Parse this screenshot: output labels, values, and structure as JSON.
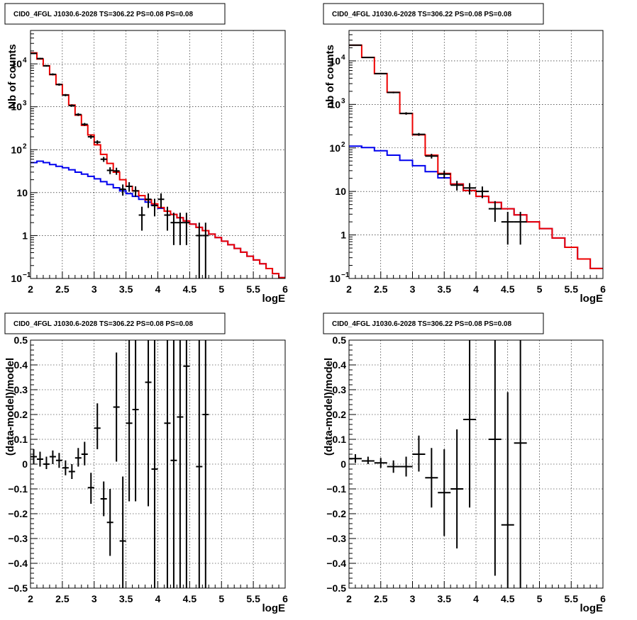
{
  "chart_data": [
    {
      "id": "counts-left",
      "type": "histogram",
      "title": "CID0_4FGL J1030.6-2028 TS=306.22 PS=0.08 PS=0.08",
      "xlabel": "logE",
      "ylabel": "Nb of counts",
      "xlim": [
        2,
        6
      ],
      "ylim": [
        0.1,
        60000
      ],
      "yscale": "log",
      "grid": true,
      "xticks": [
        "2",
        "2.5",
        "3",
        "3.5",
        "4",
        "4.5",
        "5",
        "5.5",
        "6"
      ],
      "yticks": [
        {
          "v": 0.1,
          "base": "10",
          "exp": "−1"
        },
        {
          "v": 1,
          "label": "1"
        },
        {
          "v": 10,
          "label": "10"
        },
        {
          "v": 100,
          "base": "10",
          "exp": "2"
        },
        {
          "v": 1000,
          "base": "10",
          "exp": "3"
        },
        {
          "v": 10000,
          "base": "10",
          "exp": "4"
        }
      ],
      "hist_series": [
        {
          "color": "#0000ee",
          "edges_start": 2,
          "bin_width": 0.1,
          "values": [
            50,
            54,
            50,
            45,
            41,
            38,
            34,
            30,
            27,
            24,
            21,
            18,
            15.5,
            13,
            11,
            9.5,
            8.2,
            7,
            6,
            5.1,
            4.3,
            3.7,
            3.1,
            2.6,
            2.2,
            1.85,
            1.55,
            1.3,
            1.08,
            0.9,
            0.74,
            0.61,
            0.5,
            0.41,
            0.33,
            0.27,
            0.22,
            0.17,
            0.13,
            0.105
          ]
        },
        {
          "color": "#ee0000",
          "edges_start": 2,
          "bin_width": 0.1,
          "values": [
            18000,
            13000,
            9000,
            5600,
            3300,
            1900,
            1100,
            640,
            370,
            220,
            130,
            78,
            48,
            30,
            20,
            14,
            11,
            8.5,
            6.8,
            5.5,
            4.5,
            3.7,
            3.1,
            2.6,
            2.2,
            1.85,
            1.55,
            1.3,
            1.08,
            0.9,
            0.74,
            0.61,
            0.5,
            0.41,
            0.33,
            0.27,
            0.22,
            0.17,
            0.13,
            0.105
          ]
        }
      ],
      "points": [
        {
          "x": 2.05,
          "y": 17500,
          "lo": 16900,
          "hi": 18100
        },
        {
          "x": 2.15,
          "y": 13300,
          "lo": 12800,
          "hi": 13800
        },
        {
          "x": 2.25,
          "y": 9000,
          "lo": 8600,
          "hi": 9400
        },
        {
          "x": 2.35,
          "y": 5700,
          "lo": 5400,
          "hi": 6000
        },
        {
          "x": 2.45,
          "y": 3300,
          "lo": 3100,
          "hi": 3500
        },
        {
          "x": 2.55,
          "y": 1870,
          "lo": 1760,
          "hi": 1980
        },
        {
          "x": 2.65,
          "y": 1070,
          "lo": 1000,
          "hi": 1140
        },
        {
          "x": 2.75,
          "y": 660,
          "lo": 610,
          "hi": 710
        },
        {
          "x": 2.85,
          "y": 390,
          "lo": 360,
          "hi": 420
        },
        {
          "x": 2.95,
          "y": 200,
          "lo": 180,
          "hi": 220
        },
        {
          "x": 3.05,
          "y": 150,
          "lo": 135,
          "hi": 165
        },
        {
          "x": 3.15,
          "y": 60,
          "lo": 52,
          "hi": 68
        },
        {
          "x": 3.25,
          "y": 33,
          "lo": 27,
          "hi": 39
        },
        {
          "x": 3.35,
          "y": 32,
          "lo": 26,
          "hi": 38
        },
        {
          "x": 3.45,
          "y": 12,
          "lo": 8.5,
          "hi": 15.5
        },
        {
          "x": 3.55,
          "y": 14,
          "lo": 10.5,
          "hi": 17.5
        },
        {
          "x": 3.65,
          "y": 11,
          "lo": 8,
          "hi": 14
        },
        {
          "x": 3.75,
          "y": 3,
          "lo": 1.3,
          "hi": 4.7
        },
        {
          "x": 3.85,
          "y": 7,
          "lo": 4.4,
          "hi": 9.6
        },
        {
          "x": 3.95,
          "y": 5,
          "lo": 2.8,
          "hi": 7.2
        },
        {
          "x": 4.05,
          "y": 7,
          "lo": 4.4,
          "hi": 9.6
        },
        {
          "x": 4.15,
          "y": 3,
          "lo": 1.3,
          "hi": 4.7
        },
        {
          "x": 4.25,
          "y": 2,
          "lo": 0.6,
          "hi": 3.4
        },
        {
          "x": 4.35,
          "y": 2,
          "lo": 0.6,
          "hi": 3.4
        },
        {
          "x": 4.45,
          "y": 2,
          "lo": 0.6,
          "hi": 3.4
        },
        {
          "x": 4.65,
          "y": 1,
          "lo": 0.1,
          "hi": 2
        },
        {
          "x": 4.75,
          "y": 1,
          "lo": 0.1,
          "hi": 2
        }
      ]
    },
    {
      "id": "counts-right",
      "type": "histogram",
      "title": "CID0_4FGL J1030.6-2028 TS=306.22 PS=0.08 PS=0.08",
      "xlabel": "logE",
      "ylabel": "nb of counts",
      "xlim": [
        2,
        6
      ],
      "ylim": [
        0.1,
        50000
      ],
      "yscale": "log",
      "grid": true,
      "xticks": [
        "2",
        "2.5",
        "3",
        "3.5",
        "4",
        "4.5",
        "5",
        "5.5",
        "6"
      ],
      "yticks": [
        {
          "v": 0.1,
          "base": "10",
          "exp": "−1"
        },
        {
          "v": 1,
          "label": "1"
        },
        {
          "v": 10,
          "label": "10"
        },
        {
          "v": 100,
          "base": "10",
          "exp": "2"
        },
        {
          "v": 1000,
          "base": "10",
          "exp": "3"
        },
        {
          "v": 10000,
          "base": "10",
          "exp": "4"
        }
      ],
      "hist_series": [
        {
          "color": "#0000ee",
          "edges_start": 2,
          "bin_width": 0.2,
          "values": [
            110,
            102,
            86,
            68,
            52,
            39,
            28.5,
            20.5,
            14.8,
            10.5,
            7.7,
            5.6,
            4,
            2.9,
            2,
            1.4,
            0.85,
            0.52,
            0.28,
            0.17
          ]
        },
        {
          "color": "#ee0000",
          "edges_start": 2,
          "bin_width": 0.2,
          "values": [
            23000,
            12000,
            5100,
            1900,
            620,
            200,
            68,
            26,
            14.8,
            10.5,
            7.7,
            5.6,
            4,
            2.9,
            2,
            1.4,
            0.85,
            0.52,
            0.28,
            0.17
          ]
        }
      ],
      "points": [
        {
          "x": 2.1,
          "y": 23000,
          "lo": 22500,
          "hi": 23500
        },
        {
          "x": 2.3,
          "y": 12000,
          "lo": 11700,
          "hi": 12300
        },
        {
          "x": 2.5,
          "y": 5100,
          "lo": 4900,
          "hi": 5300
        },
        {
          "x": 2.7,
          "y": 1880,
          "lo": 1800,
          "hi": 1960
        },
        {
          "x": 2.9,
          "y": 620,
          "lo": 580,
          "hi": 660
        },
        {
          "x": 3.1,
          "y": 205,
          "lo": 190,
          "hi": 220
        },
        {
          "x": 3.3,
          "y": 65,
          "lo": 57,
          "hi": 73
        },
        {
          "x": 3.5,
          "y": 25,
          "lo": 20,
          "hi": 30
        },
        {
          "x": 3.7,
          "y": 14,
          "lo": 10.5,
          "hi": 17.5
        },
        {
          "x": 3.9,
          "y": 12,
          "lo": 8.5,
          "hi": 15.5
        },
        {
          "x": 4.1,
          "y": 10,
          "lo": 7,
          "hi": 13
        },
        {
          "x": 4.3,
          "y": 4,
          "lo": 2,
          "hi": 6
        },
        {
          "x": 4.5,
          "y": 2,
          "lo": 0.6,
          "hi": 3.4
        },
        {
          "x": 4.7,
          "y": 2,
          "lo": 0.6,
          "hi": 3.4
        }
      ]
    },
    {
      "id": "resid-left",
      "type": "scatter",
      "title": "CID0_4FGL J1030.6-2028 TS=306.22 PS=0.08 PS=0.08",
      "xlabel": "logE",
      "ylabel": "(data-model)/model",
      "xlim": [
        2,
        6
      ],
      "ylim": [
        -0.5,
        0.5
      ],
      "yscale": "linear",
      "grid": true,
      "xticks": [
        "2",
        "2.5",
        "3",
        "3.5",
        "4",
        "4.5",
        "5",
        "5.5",
        "6"
      ],
      "yticks": [
        {
          "v": -0.5,
          "label": "−0.5"
        },
        {
          "v": -0.4,
          "label": "−0.4"
        },
        {
          "v": -0.3,
          "label": "−0.3"
        },
        {
          "v": -0.2,
          "label": "−0.2"
        },
        {
          "v": -0.1,
          "label": "−0.1"
        },
        {
          "v": 0,
          "label": "0"
        },
        {
          "v": 0.1,
          "label": "0.1"
        },
        {
          "v": 0.2,
          "label": "0.2"
        },
        {
          "v": 0.3,
          "label": "0.3"
        },
        {
          "v": 0.4,
          "label": "0.4"
        },
        {
          "v": 0.5,
          "label": "0.5"
        }
      ],
      "hist_series": [],
      "points": [
        {
          "x": 2.05,
          "y": 0.03,
          "lo": 0.0,
          "hi": 0.06
        },
        {
          "x": 2.15,
          "y": 0.02,
          "lo": -0.01,
          "hi": 0.05
        },
        {
          "x": 2.25,
          "y": 0.0,
          "lo": -0.02,
          "hi": 0.03
        },
        {
          "x": 2.35,
          "y": 0.03,
          "lo": 0.0,
          "hi": 0.055
        },
        {
          "x": 2.45,
          "y": 0.015,
          "lo": -0.015,
          "hi": 0.045
        },
        {
          "x": 2.55,
          "y": -0.015,
          "lo": -0.045,
          "hi": 0.015
        },
        {
          "x": 2.65,
          "y": -0.03,
          "lo": -0.06,
          "hi": 0.0
        },
        {
          "x": 2.75,
          "y": 0.025,
          "lo": -0.01,
          "hi": 0.065
        },
        {
          "x": 2.85,
          "y": 0.04,
          "lo": -0.005,
          "hi": 0.09
        },
        {
          "x": 2.95,
          "y": -0.095,
          "lo": -0.16,
          "hi": -0.035
        },
        {
          "x": 3.05,
          "y": 0.145,
          "lo": 0.06,
          "hi": 0.245
        },
        {
          "x": 3.15,
          "y": -0.14,
          "lo": -0.21,
          "hi": -0.07
        },
        {
          "x": 3.25,
          "y": -0.235,
          "lo": -0.37,
          "hi": -0.1
        },
        {
          "x": 3.35,
          "y": 0.23,
          "lo": 0.01,
          "hi": 0.45
        },
        {
          "x": 3.45,
          "y": -0.31,
          "lo": -0.5,
          "hi": -0.05
        },
        {
          "x": 3.55,
          "y": 0.165,
          "lo": -0.15,
          "hi": 0.5
        },
        {
          "x": 3.65,
          "y": 0.22,
          "lo": -0.15,
          "hi": 0.5
        },
        {
          "x": 3.85,
          "y": 0.33,
          "lo": -0.17,
          "hi": 0.5
        },
        {
          "x": 3.95,
          "y": -0.02,
          "lo": -0.5,
          "hi": 0.5
        },
        {
          "x": 4.15,
          "y": 0.165,
          "lo": -0.5,
          "hi": 0.5
        },
        {
          "x": 4.25,
          "y": 0.015,
          "lo": -0.5,
          "hi": 0.5
        },
        {
          "x": 4.35,
          "y": 0.19,
          "lo": -0.5,
          "hi": 0.5
        },
        {
          "x": 4.45,
          "y": 0.395,
          "lo": -0.5,
          "hi": 0.5
        },
        {
          "x": 4.65,
          "y": -0.01,
          "lo": -0.5,
          "hi": 0.5
        },
        {
          "x": 4.75,
          "y": 0.2,
          "lo": -0.5,
          "hi": 0.5
        }
      ]
    },
    {
      "id": "resid-right",
      "type": "scatter",
      "title": "CID0_4FGL J1030.6-2028 TS=306.22 PS=0.08 PS=0.08",
      "xlabel": "logE",
      "ylabel": "(data-model)/model",
      "xlim": [
        2,
        6
      ],
      "ylim": [
        -0.5,
        0.5
      ],
      "yscale": "linear",
      "grid": true,
      "xticks": [
        "2",
        "2.5",
        "3",
        "3.5",
        "4",
        "4.5",
        "5",
        "5.5",
        "6"
      ],
      "yticks": [
        {
          "v": -0.5,
          "label": "−0.5"
        },
        {
          "v": -0.4,
          "label": "−0.4"
        },
        {
          "v": -0.3,
          "label": "−0.3"
        },
        {
          "v": -0.2,
          "label": "−0.2"
        },
        {
          "v": -0.1,
          "label": "−0.1"
        },
        {
          "v": 0,
          "label": "0"
        },
        {
          "v": 0.1,
          "label": "0.1"
        },
        {
          "v": 0.2,
          "label": "0.2"
        },
        {
          "v": 0.3,
          "label": "0.3"
        },
        {
          "v": 0.4,
          "label": "0.4"
        },
        {
          "v": 0.5,
          "label": "0.5"
        }
      ],
      "hist_series": [],
      "points": [
        {
          "x": 2.1,
          "y": 0.022,
          "lo": 0.005,
          "hi": 0.04
        },
        {
          "x": 2.3,
          "y": 0.013,
          "lo": 0.0,
          "hi": 0.03
        },
        {
          "x": 2.5,
          "y": 0.005,
          "lo": -0.015,
          "hi": 0.025
        },
        {
          "x": 2.7,
          "y": -0.01,
          "lo": -0.035,
          "hi": 0.015
        },
        {
          "x": 2.9,
          "y": -0.01,
          "lo": -0.05,
          "hi": 0.03
        },
        {
          "x": 3.1,
          "y": 0.04,
          "lo": -0.03,
          "hi": 0.115
        },
        {
          "x": 3.3,
          "y": -0.055,
          "lo": -0.175,
          "hi": 0.065
        },
        {
          "x": 3.5,
          "y": -0.115,
          "lo": -0.29,
          "hi": 0.06
        },
        {
          "x": 3.7,
          "y": -0.1,
          "lo": -0.34,
          "hi": 0.14
        },
        {
          "x": 3.9,
          "y": 0.18,
          "lo": -0.175,
          "hi": 0.5
        },
        {
          "x": 4.3,
          "y": 0.1,
          "lo": -0.45,
          "hi": 0.5
        },
        {
          "x": 4.5,
          "y": -0.245,
          "lo": -0.5,
          "hi": 0.29
        },
        {
          "x": 4.7,
          "y": 0.085,
          "lo": -0.5,
          "hi": 0.5
        }
      ]
    }
  ]
}
